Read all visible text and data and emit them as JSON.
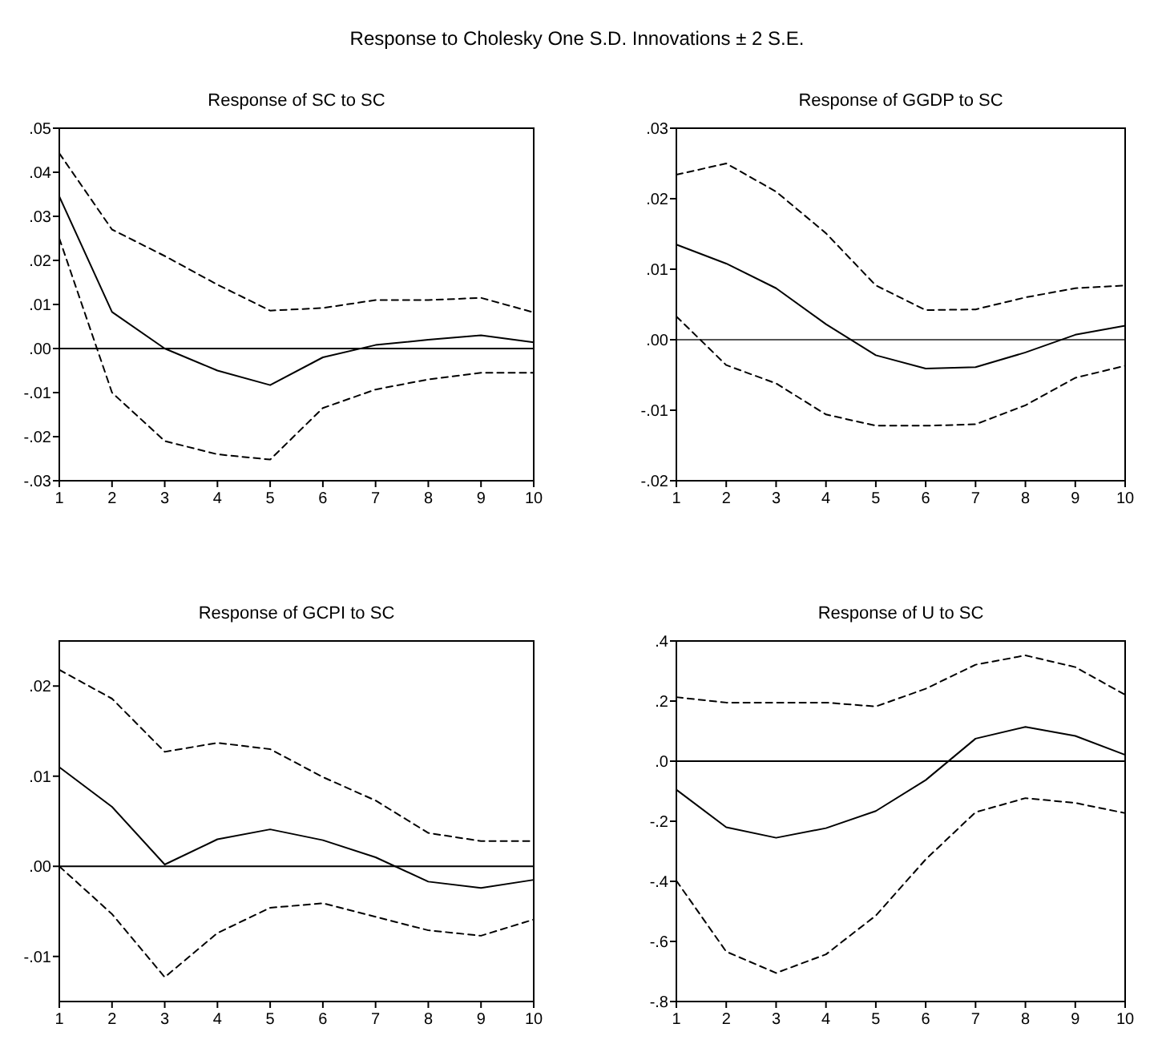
{
  "chart_data": [
    {
      "type": "other",
      "title": "Response to Cholesky One S.D. Innovations ± 2 S.E."
    },
    {
      "type": "line",
      "title": "Response of SC to SC",
      "x": [
        1,
        2,
        3,
        4,
        5,
        6,
        7,
        8,
        9,
        10
      ],
      "xlim": [
        1,
        10
      ],
      "xticks": [
        1,
        2,
        3,
        4,
        5,
        6,
        7,
        8,
        9,
        10
      ],
      "ylim": [
        -0.03,
        0.05
      ],
      "yticks": [
        {
          "value": -0.03,
          "label": "-.03"
        },
        {
          "value": -0.02,
          "label": "-.02"
        },
        {
          "value": -0.01,
          "label": "-.01"
        },
        {
          "value": 0,
          "label": ".00"
        },
        {
          "value": 0.01,
          "label": ".01"
        },
        {
          "value": 0.02,
          "label": ".02"
        },
        {
          "value": 0.03,
          "label": ".03"
        },
        {
          "value": 0.04,
          "label": ".04"
        },
        {
          "value": 0.05,
          "label": ".05"
        }
      ],
      "marker": "none",
      "ref_lines": [
        {
          "axis": "y",
          "value": 0,
          "color": "#000000"
        }
      ],
      "series": [
        {
          "color": "#000000",
          "line_style": "solid",
          "values": [
            0.0345,
            0.0083,
            0.0,
            -0.005,
            -0.0083,
            -0.002,
            0.0008,
            0.002,
            0.003,
            0.0014
          ]
        },
        {
          "color": "#000000",
          "line_style": "dashed",
          "values": [
            0.0443,
            0.027,
            0.021,
            0.0145,
            0.0086,
            0.0092,
            0.011,
            0.011,
            0.0115,
            0.0082
          ]
        },
        {
          "color": "#000000",
          "line_style": "dashed",
          "values": [
            0.025,
            -0.01,
            -0.021,
            -0.024,
            -0.0252,
            -0.0135,
            -0.0093,
            -0.007,
            -0.0055,
            -0.0055
          ]
        }
      ]
    },
    {
      "type": "line",
      "title": "Response of GGDP to SC",
      "x": [
        1,
        2,
        3,
        4,
        5,
        6,
        7,
        8,
        9,
        10
      ],
      "xlim": [
        1,
        10
      ],
      "xticks": [
        1,
        2,
        3,
        4,
        5,
        6,
        7,
        8,
        9,
        10
      ],
      "ylim": [
        -0.02,
        0.03
      ],
      "yticks": [
        {
          "value": -0.02,
          "label": "-.02"
        },
        {
          "value": -0.01,
          "label": "-.01"
        },
        {
          "value": 0,
          "label": ".00"
        },
        {
          "value": 0.01,
          "label": ".01"
        },
        {
          "value": 0.02,
          "label": ".02"
        },
        {
          "value": 0.03,
          "label": ".03"
        }
      ],
      "marker": "none",
      "ref_lines": [
        {
          "axis": "y",
          "value": 0,
          "color": "#555555"
        }
      ],
      "series": [
        {
          "color": "#000000",
          "line_style": "solid",
          "values": [
            0.0135,
            0.0108,
            0.0073,
            0.0022,
            -0.0022,
            -0.0041,
            -0.0039,
            -0.0018,
            0.0007,
            0.002
          ]
        },
        {
          "color": "#000000",
          "line_style": "dashed",
          "values": [
            0.0234,
            0.025,
            0.021,
            0.0151,
            0.0077,
            0.0042,
            0.0043,
            0.006,
            0.0073,
            0.0077
          ]
        },
        {
          "color": "#000000",
          "line_style": "dashed",
          "values": [
            0.0033,
            -0.0036,
            -0.0062,
            -0.0106,
            -0.0122,
            -0.0122,
            -0.012,
            -0.0093,
            -0.0054,
            -0.0037
          ]
        }
      ]
    },
    {
      "type": "line",
      "title": "Response of GCPI to SC",
      "x": [
        1,
        2,
        3,
        4,
        5,
        6,
        7,
        8,
        9,
        10
      ],
      "xlim": [
        1,
        10
      ],
      "xticks": [
        1,
        2,
        3,
        4,
        5,
        6,
        7,
        8,
        9,
        10
      ],
      "ylim": [
        -0.015,
        0.025
      ],
      "yticks": [
        {
          "value": -0.01,
          "label": "-.01"
        },
        {
          "value": 0,
          "label": ".00"
        },
        {
          "value": 0.01,
          "label": ".01"
        },
        {
          "value": 0.02,
          "label": ".02"
        }
      ],
      "marker": "none",
      "ref_lines": [
        {
          "axis": "y",
          "value": 0,
          "color": "#000000"
        }
      ],
      "series": [
        {
          "color": "#000000",
          "line_style": "solid",
          "values": [
            0.011,
            0.0066,
            0.0002,
            0.003,
            0.0041,
            0.0029,
            0.001,
            -0.0017,
            -0.0024,
            -0.0015
          ]
        },
        {
          "color": "#000000",
          "line_style": "dashed",
          "values": [
            0.0218,
            0.0186,
            0.0127,
            0.0137,
            0.013,
            0.0099,
            0.0073,
            0.0037,
            0.0028,
            0.0028
          ]
        },
        {
          "color": "#000000",
          "line_style": "dashed",
          "values": [
            0.0,
            -0.0053,
            -0.0123,
            -0.0074,
            -0.0046,
            -0.0041,
            -0.0056,
            -0.0071,
            -0.0077,
            -0.0059
          ]
        }
      ]
    },
    {
      "type": "line",
      "title": "Response of U to SC",
      "x": [
        1,
        2,
        3,
        4,
        5,
        6,
        7,
        8,
        9,
        10
      ],
      "xlim": [
        1,
        10
      ],
      "xticks": [
        1,
        2,
        3,
        4,
        5,
        6,
        7,
        8,
        9,
        10
      ],
      "ylim": [
        -0.8,
        0.4
      ],
      "yticks": [
        {
          "value": -0.8,
          "label": "-.8"
        },
        {
          "value": -0.6,
          "label": "-.6"
        },
        {
          "value": -0.4,
          "label": "-.4"
        },
        {
          "value": -0.2,
          "label": "-.2"
        },
        {
          "value": 0,
          "label": ".0"
        },
        {
          "value": 0.2,
          "label": ".2"
        },
        {
          "value": 0.4,
          "label": ".4"
        }
      ],
      "marker": "none",
      "ref_lines": [
        {
          "axis": "y",
          "value": 0,
          "color": "#000000"
        }
      ],
      "series": [
        {
          "color": "#000000",
          "line_style": "solid",
          "values": [
            -0.095,
            -0.22,
            -0.255,
            -0.223,
            -0.166,
            -0.063,
            0.075,
            0.114,
            0.084,
            0.021
          ]
        },
        {
          "color": "#000000",
          "line_style": "dashed",
          "values": [
            0.213,
            0.195,
            0.195,
            0.195,
            0.182,
            0.241,
            0.321,
            0.352,
            0.313,
            0.221
          ]
        },
        {
          "color": "#000000",
          "line_style": "dashed",
          "values": [
            -0.398,
            -0.634,
            -0.705,
            -0.643,
            -0.514,
            -0.327,
            -0.17,
            -0.123,
            -0.139,
            -0.173
          ]
        }
      ]
    }
  ]
}
